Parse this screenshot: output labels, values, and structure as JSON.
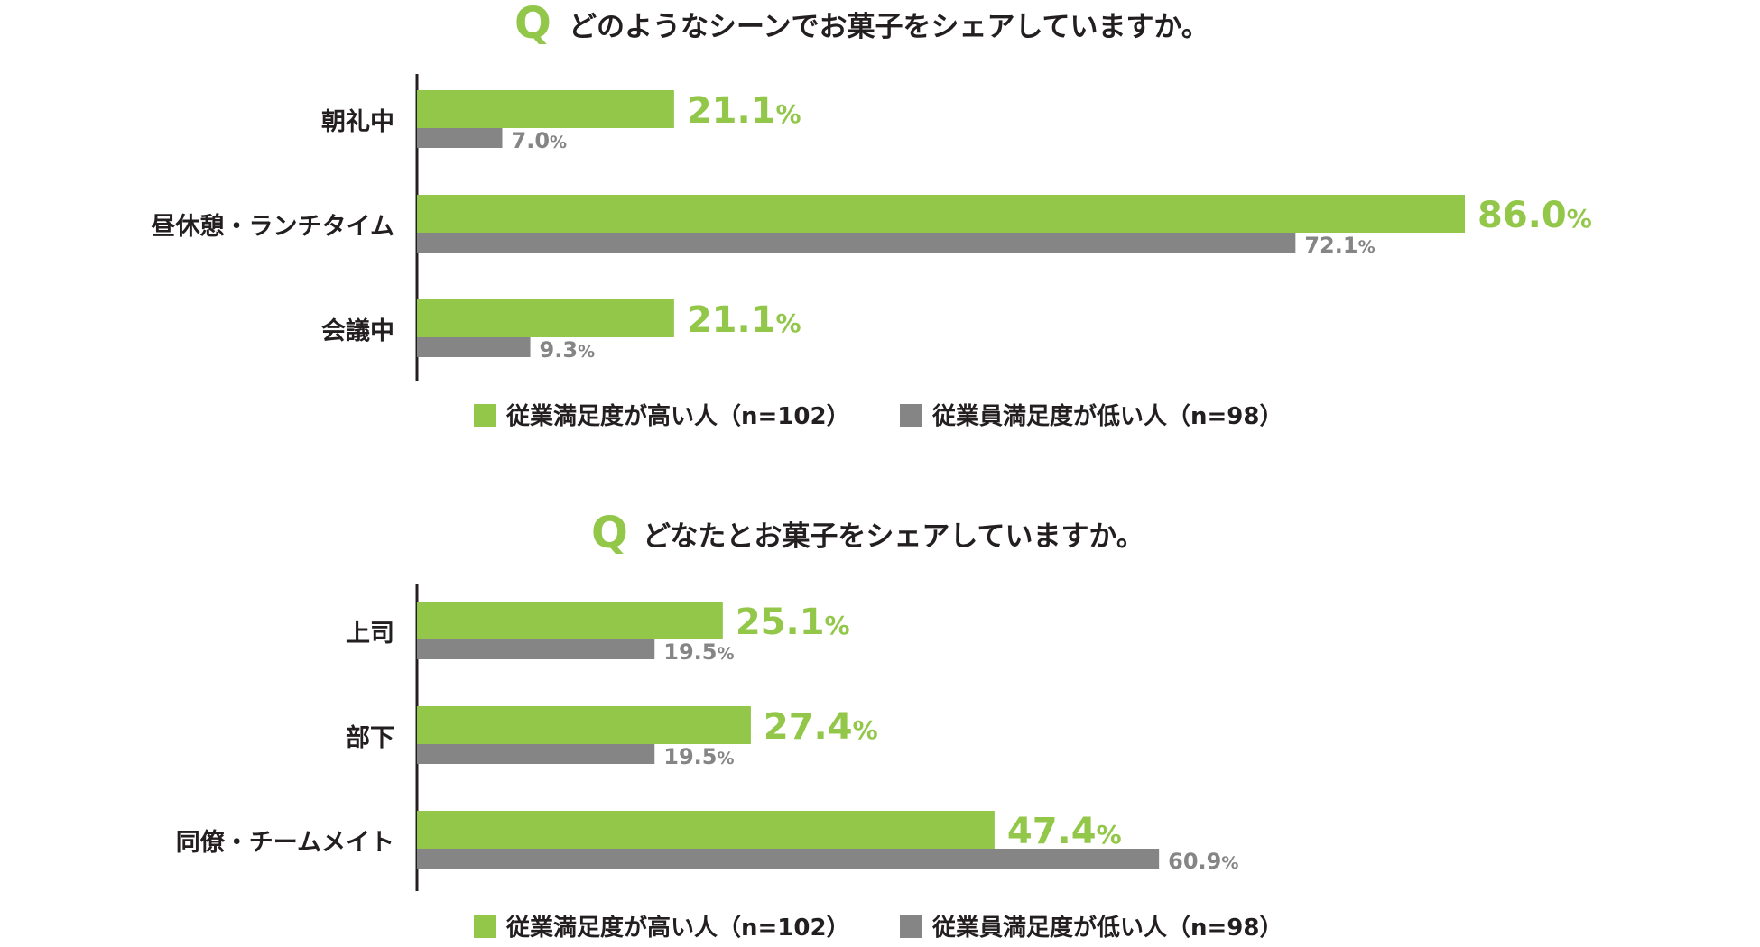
{
  "chart_data": [
    {
      "type": "bar",
      "orientation": "horizontal",
      "q_mark": "Q",
      "title": "どのようなシーンでお菓子をシェアしていますか。",
      "categories": [
        "朝礼中",
        "昼休憩・ランチタイム",
        "会議中"
      ],
      "series": [
        {
          "name": "従業満足度が高い人（n=102）",
          "values": [
            21.1,
            86.0,
            21.1
          ],
          "labels": [
            "21.1",
            "86.0",
            "21.1"
          ],
          "color": "#92c74a"
        },
        {
          "name": "従業員満足度が低い人（n=98）",
          "values": [
            7.0,
            72.1,
            9.3
          ],
          "labels": [
            "7.0",
            "72.1",
            "9.3"
          ],
          "color": "#858585"
        }
      ],
      "unit": "%",
      "xlim": [
        0,
        100
      ],
      "legend_position": "bottom"
    },
    {
      "type": "bar",
      "orientation": "horizontal",
      "q_mark": "Q",
      "title": "どなたとお菓子をシェアしていますか。",
      "categories": [
        "上司",
        "部下",
        "同僚・チームメイト"
      ],
      "series": [
        {
          "name": "従業満足度が高い人（n=102）",
          "values": [
            25.1,
            27.4,
            47.4
          ],
          "labels": [
            "25.1",
            "27.4",
            "47.4"
          ],
          "color": "#92c74a"
        },
        {
          "name": "従業員満足度が低い人（n=98）",
          "values": [
            19.5,
            19.5,
            60.9
          ],
          "labels": [
            "19.5",
            "19.5",
            "60.9"
          ],
          "color": "#858585"
        }
      ],
      "unit": "%",
      "xlim": [
        0,
        100
      ],
      "legend_position": "bottom"
    }
  ],
  "colors": {
    "accent_green": "#92c74a",
    "gray": "#858585",
    "text": "#231f20",
    "axis": "#231f20"
  }
}
